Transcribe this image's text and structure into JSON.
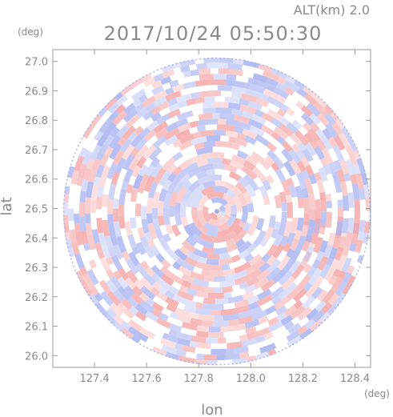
{
  "header": {
    "altitude_label": "ALT(km) 2.0",
    "timestamp": "2017/10/24 05:50:30"
  },
  "chart_data": {
    "type": "heatmap",
    "title": "2017/10/24 05:50:30",
    "xlabel": "lon",
    "ylabel": "lat",
    "x_unit": "(deg)",
    "y_unit": "(deg)",
    "xlim": [
      127.24,
      128.46
    ],
    "ylim": [
      25.96,
      27.04
    ],
    "x_ticks": [
      "127.4",
      "127.6",
      "127.8",
      "128.0",
      "128.2",
      "128.4"
    ],
    "y_ticks": [
      "26.0",
      "26.1",
      "26.2",
      "26.3",
      "26.4",
      "26.5",
      "26.6",
      "26.7",
      "26.8",
      "26.9",
      "27.0"
    ],
    "center": {
      "lon": 127.87,
      "lat": 26.49
    },
    "colors": {
      "positive": "#f4a9a9",
      "negative": "#aab4f0",
      "frame": "#9a9a9a",
      "text": "#8a8a8a"
    },
    "grid": false
  }
}
